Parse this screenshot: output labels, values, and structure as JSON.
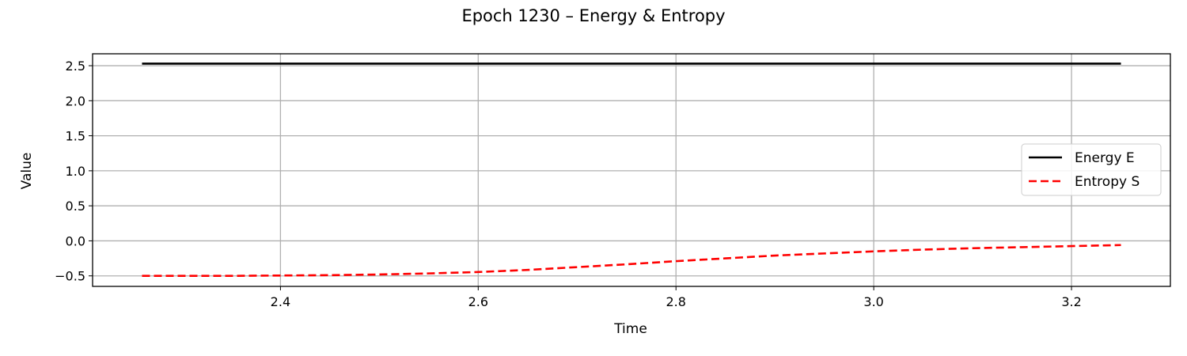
{
  "chart_data": {
    "type": "line",
    "title": "Epoch 1230 – Energy & Entropy",
    "xlabel": "Time",
    "ylabel": "Value",
    "xlim": [
      2.21,
      3.3
    ],
    "ylim": [
      -0.65,
      2.67
    ],
    "xticks": [
      2.4,
      2.6,
      2.8,
      3.0,
      3.2
    ],
    "xtick_labels": [
      "2.4",
      "2.6",
      "2.8",
      "3.0",
      "3.2"
    ],
    "yticks": [
      -0.5,
      0.0,
      0.5,
      1.0,
      1.5,
      2.0,
      2.5
    ],
    "ytick_labels": [
      "−0.5",
      "0.0",
      "0.5",
      "1.0",
      "1.5",
      "2.0",
      "2.5"
    ],
    "grid": true,
    "legend_position": "center-right",
    "series": [
      {
        "name": "Energy E",
        "color": "#000000",
        "style": "solid",
        "x": [
          2.26,
          2.4,
          2.5,
          2.6,
          2.7,
          2.8,
          2.9,
          3.0,
          3.1,
          3.2,
          3.25
        ],
        "y": [
          2.53,
          2.53,
          2.53,
          2.53,
          2.53,
          2.53,
          2.53,
          2.53,
          2.53,
          2.53,
          2.53
        ]
      },
      {
        "name": "Entropy S",
        "color": "#ff0000",
        "style": "dashed",
        "x": [
          2.26,
          2.3,
          2.35,
          2.4,
          2.45,
          2.5,
          2.55,
          2.6,
          2.65,
          2.7,
          2.75,
          2.8,
          2.85,
          2.9,
          2.95,
          3.0,
          3.05,
          3.1,
          3.15,
          3.2,
          3.25
        ],
        "y": [
          -0.5,
          -0.5,
          -0.5,
          -0.495,
          -0.49,
          -0.48,
          -0.465,
          -0.445,
          -0.415,
          -0.375,
          -0.335,
          -0.29,
          -0.25,
          -0.21,
          -0.18,
          -0.15,
          -0.125,
          -0.105,
          -0.09,
          -0.075,
          -0.06
        ]
      }
    ]
  }
}
